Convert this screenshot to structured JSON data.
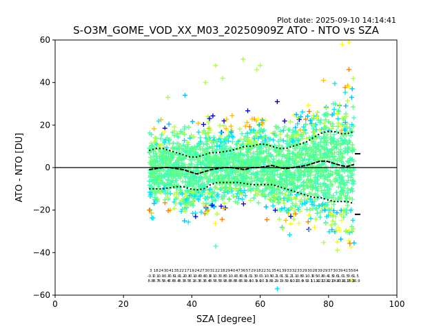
{
  "header": {
    "plot_date": "Plot date: 2025-09-10 14:14:41"
  },
  "chart_data": {
    "type": "scatter",
    "title": "S-O3M_GOME_VOD_XX_M03_20250909Z ATO - NTO vs SZA",
    "xlabel": "SZA [degree]",
    "ylabel": "ATO - NTO [DU]",
    "xlim": [
      0,
      100
    ],
    "ylim": [
      -60,
      60
    ],
    "xticks": [
      0,
      20,
      40,
      60,
      80,
      100
    ],
    "yticks": [
      -60,
      -40,
      -20,
      0,
      20,
      40,
      60
    ],
    "xtick_labels": [
      "0",
      "20",
      "40",
      "60",
      "80",
      "100"
    ],
    "ytick_labels": [
      "−60",
      "−40",
      "−20",
      "0",
      "20",
      "40",
      "60"
    ],
    "grid": false,
    "legend": "none",
    "reference_line_y": 0,
    "colormap": [
      "#00008b",
      "#0000ff",
      "#00bfff",
      "#00e5ff",
      "#40ffb0",
      "#66ff80",
      "#b0ff40",
      "#ffff00",
      "#ffbf00",
      "#ff8000"
    ],
    "scatter_envelope": [
      {
        "x": 27.5,
        "upper": 22,
        "lower": -28
      },
      {
        "x": 32,
        "upper": 26,
        "lower": -26
      },
      {
        "x": 38,
        "upper": 30,
        "lower": -34
      },
      {
        "x": 42,
        "upper": 28,
        "lower": -30
      },
      {
        "x": 48,
        "upper": 27,
        "lower": -27
      },
      {
        "x": 54,
        "upper": 28,
        "lower": -24
      },
      {
        "x": 60,
        "upper": 30,
        "lower": -22
      },
      {
        "x": 66,
        "upper": 28,
        "lower": -36
      },
      {
        "x": 72,
        "upper": 36,
        "lower": -34
      },
      {
        "x": 78,
        "upper": 42,
        "lower": -40
      },
      {
        "x": 82,
        "upper": 52,
        "lower": -46
      },
      {
        "x": 85,
        "upper": 56,
        "lower": -50
      },
      {
        "x": 87.5,
        "upper": 56,
        "lower": -50
      }
    ],
    "series": [
      {
        "x": [
          27.5,
          29.5,
          31.5,
          33.5,
          35.5,
          37.5,
          39.5,
          41.5,
          43.5,
          45.5,
          47.5,
          49.5,
          51.5,
          53.5,
          55.5,
          57.5,
          59.5,
          61.5,
          63.5,
          65.5,
          67.5,
          69.5,
          71.5,
          73.5,
          75.5,
          77.5,
          79.5,
          81.5,
          83.5,
          85.5,
          87.5
        ],
        "values": [
          -1,
          -0.5,
          0,
          0,
          -0.5,
          -1,
          -2,
          -3,
          -2,
          -1,
          -0.5,
          0,
          0,
          -0.5,
          -1,
          0,
          0,
          0.5,
          1,
          0,
          -0.5,
          0,
          0.5,
          1,
          2,
          3,
          3,
          2,
          1,
          0.5,
          1.5
        ]
      },
      {
        "x": [
          27.5,
          29.5,
          31.5,
          33.5,
          35.5,
          37.5,
          39.5,
          41.5,
          43.5,
          45.5,
          47.5,
          49.5,
          51.5,
          53.5,
          55.5,
          57.5,
          59.5,
          61.5,
          63.5,
          65.5,
          67.5,
          69.5,
          71.5,
          73.5,
          75.5,
          77.5,
          79.5,
          81.5,
          83.5,
          85.5,
          87.5
        ],
        "values": [
          8,
          9,
          9,
          8,
          7,
          6,
          5,
          5,
          6,
          7,
          7,
          7.5,
          8,
          9,
          10,
          10,
          11,
          11,
          10,
          9,
          9,
          10,
          11,
          12,
          14,
          16,
          17,
          17,
          16,
          16,
          17
        ]
      },
      {
        "x": [
          27.5,
          29.5,
          31.5,
          33.5,
          35.5,
          37.5,
          39.5,
          41.5,
          43.5,
          45.5,
          47.5,
          49.5,
          51.5,
          53.5,
          55.5,
          57.5,
          59.5,
          61.5,
          63.5,
          65.5,
          67.5,
          69.5,
          71.5,
          73.5,
          75.5,
          77.5,
          79.5,
          81.5,
          83.5,
          85.5,
          87.5
        ],
        "values": [
          -10,
          -10,
          -10,
          -9.5,
          -9,
          -9,
          -10,
          -10.5,
          -10,
          -8,
          -7,
          -7,
          -7,
          -7,
          -7.5,
          -8,
          -8,
          -8,
          -8,
          -9,
          -10,
          -11,
          -12,
          -13,
          -14,
          -14,
          -15,
          -16,
          -16,
          -16,
          -17
        ]
      }
    ],
    "end_marker": {
      "x": 88.5,
      "values": [
        6.5,
        -22
      ]
    },
    "annotation_columns_x": [
      28,
      29.5,
      31,
      32.5,
      34,
      35.5,
      37,
      38.5,
      40,
      41.5,
      43,
      44.5,
      46,
      47.5,
      49,
      50.5,
      52,
      53.5,
      55,
      56.5,
      58,
      59.5,
      61,
      62.5,
      64,
      65.5,
      67,
      68.5,
      70,
      71.5,
      73,
      74.5,
      76,
      77.5,
      79,
      80.5,
      82,
      83.5,
      85,
      86.5,
      88
    ],
    "annotation_rows_y": [
      -49,
      -51.5,
      -53.8
    ],
    "annotation_rows": [
      [
        "3",
        "18",
        "24",
        "30",
        "41",
        "35",
        "22",
        "17",
        "19",
        "24",
        "27",
        "30",
        "31",
        "22",
        "18",
        "29",
        "40",
        "47",
        "36",
        "57",
        "29",
        "18",
        "22",
        "31",
        "35",
        "41",
        "39",
        "33",
        "32",
        "33",
        "29",
        "30",
        "28",
        "39",
        "29",
        "37",
        "30",
        "39",
        "41",
        "55",
        "64"
      ],
      [
        "-0.1",
        "0.1",
        "0.0",
        "-0.3",
        "-0.5",
        "-1.0",
        "-1.2",
        "-0.3",
        "-0.1",
        "-0.6",
        "-0.6",
        "-0.3",
        "0.1",
        "0.3",
        "0.8",
        "0.1",
        "-0.0",
        "-0.5",
        "-0.6",
        "1.0",
        "1.3",
        "0.0",
        "0.1",
        "-0.5",
        "-0.2",
        "1.0",
        "1.3",
        "1.2",
        "1.1",
        "0.8",
        "0.1",
        "-0.3",
        "0.5",
        "-0.8",
        "-0.4",
        "-1.5",
        "0.6",
        "1.0",
        "1.5",
        "0.6",
        "1.5"
      ],
      [
        "8.8",
        "8.7",
        "8.5",
        "8.4",
        "8.6",
        "8.4",
        "8.3",
        "8.5",
        "8.1",
        "8.3",
        "8.3",
        "8.4",
        "8.5",
        "8.5",
        "8.9",
        "8.8",
        "8.8",
        "8.6",
        "8.9",
        "9.4",
        "10.1",
        "9.0",
        "10.1",
        "9.8",
        "9.2",
        "9.1",
        "9.5",
        "9.6",
        "10.0",
        "10.6",
        "9.9",
        "9.1",
        "11.4",
        "12.1",
        "13.4",
        "12.0",
        "14.4",
        "13.4",
        "11.9",
        "15.1",
        "16.9"
      ]
    ]
  }
}
